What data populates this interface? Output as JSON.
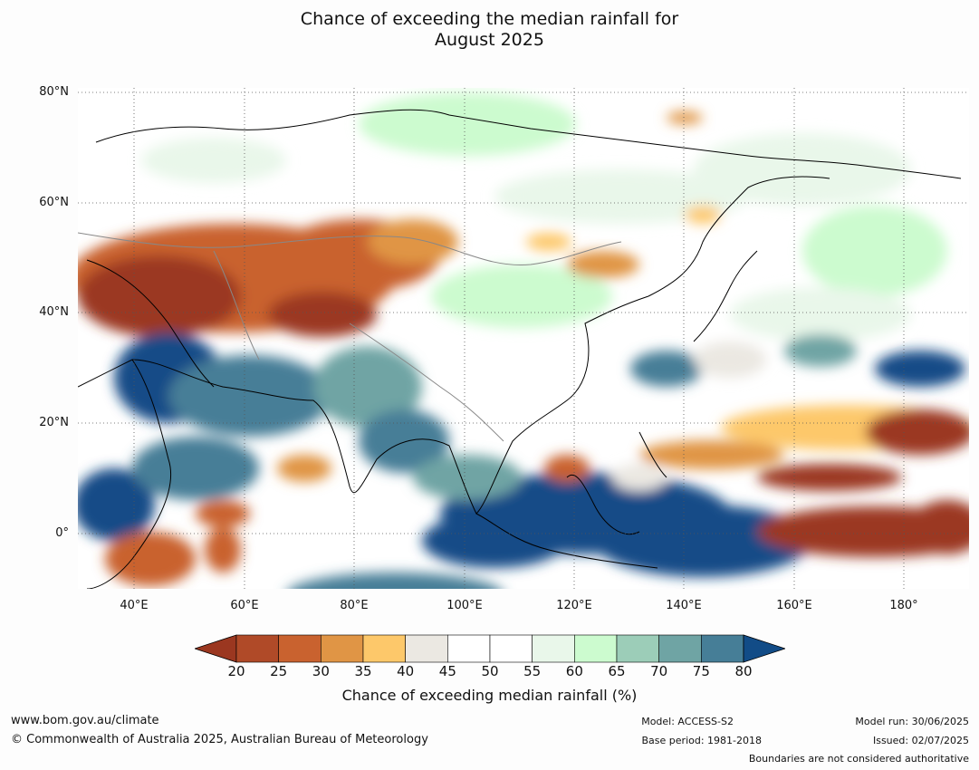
{
  "title_line1": "Chance of exceeding the median rainfall for",
  "title_line2": "August 2025",
  "lat_labels": [
    "80°N",
    "60°N",
    "40°N",
    "20°N",
    "0°"
  ],
  "lon_labels": [
    "40°E",
    "60°E",
    "80°E",
    "100°E",
    "120°E",
    "140°E",
    "160°E",
    "180°"
  ],
  "colorbar": {
    "ticks": [
      "20",
      "25",
      "30",
      "35",
      "40",
      "45",
      "50",
      "55",
      "60",
      "65",
      "70",
      "75",
      "80"
    ],
    "colors": [
      "#9b3720",
      "#b04a28",
      "#c9622f",
      "#e09545",
      "#fdc86a",
      "#ebe8e2",
      "#ffffff",
      "#ffffff",
      "#e9f7ea",
      "#ccfbcf",
      "#9ccdb8",
      "#6fa4a4",
      "#467e97",
      "#124c87"
    ],
    "label": "Chance of exceeding median rainfall (%)"
  },
  "footer": {
    "website": "www.bom.gov.au/climate",
    "copyright": "© Commonwealth of Australia 2025, Australian Bureau of Meteorology",
    "model": "Model: ACCESS-S2",
    "base_period": "Base period: 1981-2018",
    "model_run": "Model run: 30/06/2025",
    "issued": "Issued: 02/07/2025",
    "disclaimer": "Boundaries are not considered authoritative"
  }
}
